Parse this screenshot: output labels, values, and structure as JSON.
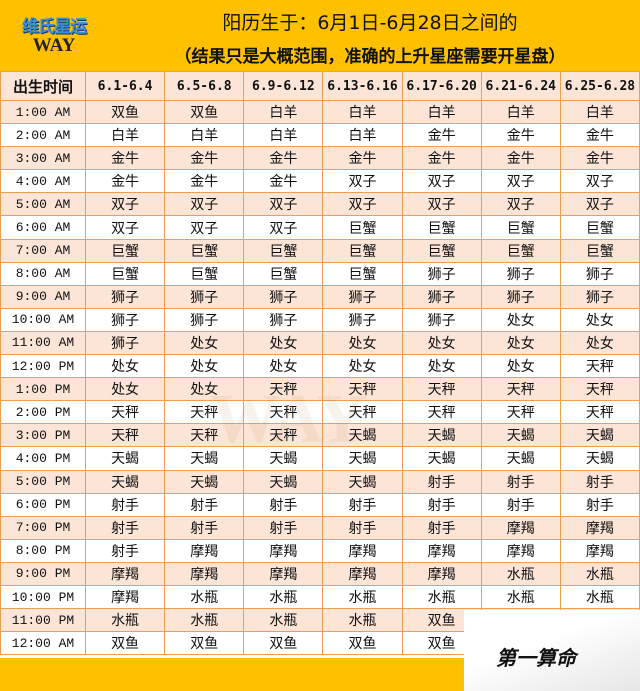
{
  "header": {
    "logo_cn": "维氏星运",
    "logo_en": "WAY",
    "title": "阳历生于：6月1日-6月28日之间的",
    "subtitle": "（结果只是大概范围，准确的上升星座需要开星盘）"
  },
  "columns": [
    "出生时间",
    "6.1-6.4",
    "6.5-6.8",
    "6.9-6.12",
    "6.13-6.16",
    "6.17-6.20",
    "6.21-6.24",
    "6.25-6.28"
  ],
  "rows": [
    [
      "1:00 AM",
      "双鱼",
      "双鱼",
      "白羊",
      "白羊",
      "白羊",
      "白羊",
      "白羊"
    ],
    [
      "2:00 AM",
      "白羊",
      "白羊",
      "白羊",
      "白羊",
      "金牛",
      "金牛",
      "金牛"
    ],
    [
      "3:00 AM",
      "金牛",
      "金牛",
      "金牛",
      "金牛",
      "金牛",
      "金牛",
      "金牛"
    ],
    [
      "4:00 AM",
      "金牛",
      "金牛",
      "金牛",
      "双子",
      "双子",
      "双子",
      "双子"
    ],
    [
      "5:00 AM",
      "双子",
      "双子",
      "双子",
      "双子",
      "双子",
      "双子",
      "双子"
    ],
    [
      "6:00 AM",
      "双子",
      "双子",
      "双子",
      "巨蟹",
      "巨蟹",
      "巨蟹",
      "巨蟹"
    ],
    [
      "7:00 AM",
      "巨蟹",
      "巨蟹",
      "巨蟹",
      "巨蟹",
      "巨蟹",
      "巨蟹",
      "巨蟹"
    ],
    [
      "8:00 AM",
      "巨蟹",
      "巨蟹",
      "巨蟹",
      "巨蟹",
      "狮子",
      "狮子",
      "狮子"
    ],
    [
      "9:00 AM",
      "狮子",
      "狮子",
      "狮子",
      "狮子",
      "狮子",
      "狮子",
      "狮子"
    ],
    [
      "10:00 AM",
      "狮子",
      "狮子",
      "狮子",
      "狮子",
      "狮子",
      "处女",
      "处女"
    ],
    [
      "11:00 AM",
      "狮子",
      "处女",
      "处女",
      "处女",
      "处女",
      "处女",
      "处女"
    ],
    [
      "12:00 PM",
      "处女",
      "处女",
      "处女",
      "处女",
      "处女",
      "处女",
      "天秤"
    ],
    [
      "1:00 PM",
      "处女",
      "处女",
      "天秤",
      "天秤",
      "天秤",
      "天秤",
      "天秤"
    ],
    [
      "2:00 PM",
      "天秤",
      "天秤",
      "天秤",
      "天秤",
      "天秤",
      "天秤",
      "天秤"
    ],
    [
      "3:00 PM",
      "天秤",
      "天秤",
      "天秤",
      "天蝎",
      "天蝎",
      "天蝎",
      "天蝎"
    ],
    [
      "4:00 PM",
      "天蝎",
      "天蝎",
      "天蝎",
      "天蝎",
      "天蝎",
      "天蝎",
      "天蝎"
    ],
    [
      "5:00 PM",
      "天蝎",
      "天蝎",
      "天蝎",
      "天蝎",
      "射手",
      "射手",
      "射手"
    ],
    [
      "6:00 PM",
      "射手",
      "射手",
      "射手",
      "射手",
      "射手",
      "射手",
      "射手"
    ],
    [
      "7:00 PM",
      "射手",
      "射手",
      "射手",
      "射手",
      "射手",
      "摩羯",
      "摩羯"
    ],
    [
      "8:00 PM",
      "射手",
      "摩羯",
      "摩羯",
      "摩羯",
      "摩羯",
      "摩羯",
      "摩羯"
    ],
    [
      "9:00 PM",
      "摩羯",
      "摩羯",
      "摩羯",
      "摩羯",
      "摩羯",
      "水瓶",
      "水瓶"
    ],
    [
      "10:00 PM",
      "摩羯",
      "水瓶",
      "水瓶",
      "水瓶",
      "水瓶",
      "水瓶",
      "水瓶"
    ],
    [
      "11:00 PM",
      "水瓶",
      "水瓶",
      "水瓶",
      "水瓶",
      "双鱼",
      "",
      ""
    ],
    [
      "12:00 AM",
      "双鱼",
      "双鱼",
      "双鱼",
      "双鱼",
      "双鱼",
      "",
      ""
    ]
  ],
  "watermark": "第一算命",
  "colors": {
    "header": "#ffc000",
    "row_alt": "#fce4d6",
    "border": "#ee9d55"
  }
}
